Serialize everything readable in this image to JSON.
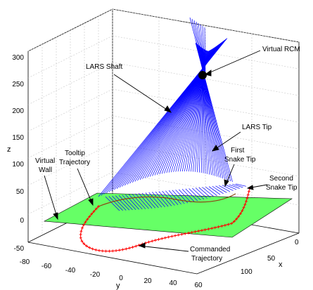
{
  "chart_data": {
    "type": "line",
    "title": "",
    "xlabel": "x",
    "ylabel": "y",
    "zlabel": "z",
    "y_ticks": [
      "-80",
      "-60",
      "-40",
      "-20",
      "0",
      "20",
      "40",
      "60"
    ],
    "x_ticks": [
      "0",
      "50",
      "100"
    ],
    "z_ticks": [
      "-50",
      "0",
      "50",
      "100",
      "150",
      "200",
      "250",
      "300"
    ],
    "xlim": [
      -10,
      110
    ],
    "ylim": [
      -80,
      70
    ],
    "zlim": [
      -60,
      320
    ],
    "grid": true,
    "series": [
      {
        "name": "LARS Shaft",
        "color": "#0000ff"
      },
      {
        "name": "Commanded Trajectory",
        "color": "#ff0000"
      },
      {
        "name": "Tooltip Trajectory",
        "color": "#8b4513"
      }
    ],
    "virtual_wall": {
      "label": "Virtual Wall",
      "z": 0,
      "color": "#66ff66"
    },
    "annotations": [
      "Virtual RCM",
      "LARS Shaft",
      "LARS Tip",
      "First Snake Tip",
      "Second Snake Tip",
      "Tooltip Trajectory",
      "Virtual Wall",
      "Commanded Trajectory"
    ]
  },
  "labels": {
    "virtual_rcm": "Virtual RCM",
    "lars_shaft": "LARS Shaft",
    "lars_tip": "LARS Tip",
    "first_snake_1": "First",
    "first_snake_2": "Snake Tip",
    "second_snake_1": "Second",
    "second_snake_2": "Snake Tip",
    "tooltip_1": "Tooltip",
    "tooltip_2": "Trajectory",
    "wall_1": "Virtual",
    "wall_2": "Wall",
    "commanded_1": "Commanded",
    "commanded_2": "Trajectory"
  }
}
